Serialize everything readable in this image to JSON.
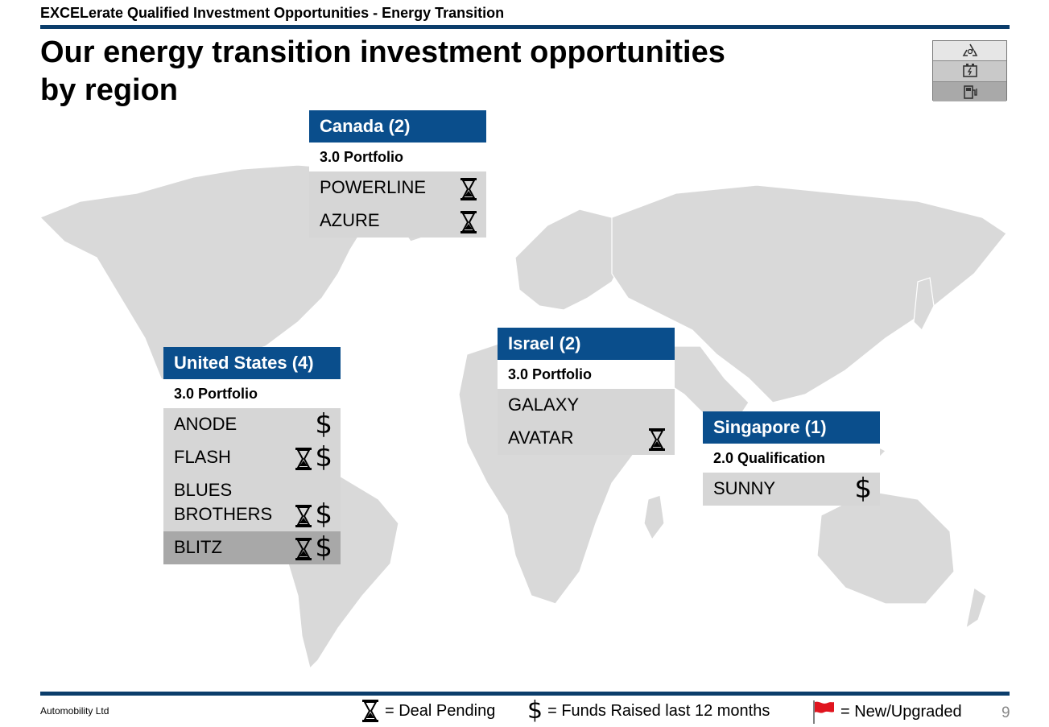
{
  "header": {
    "label": "EXCELerate Qualified Investment Opportunities - Energy Transition",
    "title_line1": "Our energy transition investment opportunities",
    "title_line2": "by region"
  },
  "icons": {
    "pending": "hourglass-icon",
    "funds": "dollar-icon",
    "new": "red-flag-icon",
    "stack": [
      "recycle-icon",
      "battery-icon",
      "charging-station-icon"
    ]
  },
  "colors": {
    "rule": "#0b3d6b",
    "region_header": "#0a4e8c",
    "item_bg": "#d6d6d6",
    "item_bg_dark": "#a8a8a8",
    "map": "#d9d9d9",
    "flag": "#e0141e"
  },
  "regions": [
    {
      "name": "Canada (2)",
      "stage": "3.0 Portfolio",
      "items": [
        {
          "name": "POWERLINE",
          "pending": true,
          "funds": false
        },
        {
          "name": "AZURE",
          "pending": true,
          "funds": false
        }
      ]
    },
    {
      "name": "United States (4)",
      "stage": "3.0 Portfolio",
      "items": [
        {
          "name": "ANODE",
          "pending": false,
          "funds": true
        },
        {
          "name": "FLASH",
          "pending": true,
          "funds": true
        },
        {
          "name": "BLUES BROTHERS",
          "pending": true,
          "funds": true
        },
        {
          "name": "BLITZ",
          "pending": true,
          "funds": true
        }
      ]
    },
    {
      "name": "Israel (2)",
      "stage": "3.0 Portfolio",
      "items": [
        {
          "name": "GALAXY",
          "pending": false,
          "funds": false
        },
        {
          "name": "AVATAR",
          "pending": true,
          "funds": false
        }
      ]
    },
    {
      "name": "Singapore (1)",
      "stage": "2.0 Qualification",
      "items": [
        {
          "name": "SUNNY",
          "pending": false,
          "funds": true
        }
      ]
    }
  ],
  "legend": {
    "pending_label": "= Deal Pending",
    "dollar_symbol": "$",
    "funds_label": "= Funds Raised last 12 months",
    "new_label": "= New/Upgraded"
  },
  "footer": {
    "company": "Automobility Ltd",
    "page_number": "9"
  }
}
